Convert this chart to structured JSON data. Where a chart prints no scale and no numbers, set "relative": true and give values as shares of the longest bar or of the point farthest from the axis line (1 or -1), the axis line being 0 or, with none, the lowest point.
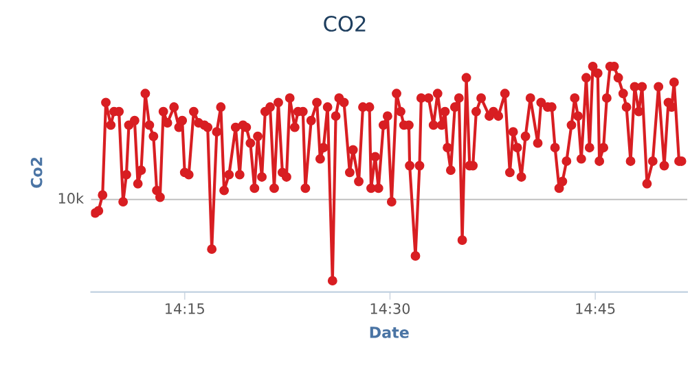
{
  "chart_data": {
    "type": "line",
    "title": "CO2",
    "xlabel": "Date",
    "ylabel": "Co2",
    "relative": true,
    "xlim": [
      14.136,
      14.862
    ],
    "xticks": [
      {
        "value": 14.25,
        "label": "14:15"
      },
      {
        "value": 14.5,
        "label": "14:30"
      },
      {
        "value": 14.75,
        "label": "14:45"
      }
    ],
    "grid": false,
    "marker": "circle",
    "line_style": "solid",
    "ref_lines": [
      {
        "axis": "y",
        "value": 0.41,
        "label": "10k",
        "color": "#c0c0c0"
      }
    ],
    "series": [
      {
        "color": "#d81e22",
        "x": [
          14.141,
          14.145,
          14.15,
          14.154,
          14.16,
          14.164,
          14.17,
          14.175,
          14.179,
          14.182,
          14.189,
          14.193,
          14.197,
          14.202,
          14.207,
          14.212,
          14.216,
          14.22,
          14.224,
          14.229,
          14.237,
          14.243,
          14.247,
          14.25,
          14.255,
          14.261,
          14.267,
          14.274,
          14.278,
          14.283,
          14.289,
          14.294,
          14.298,
          14.304,
          14.312,
          14.317,
          14.321,
          14.325,
          14.33,
          14.335,
          14.339,
          14.344,
          14.348,
          14.354,
          14.359,
          14.364,
          14.369,
          14.374,
          14.378,
          14.384,
          14.388,
          14.394,
          14.397,
          14.404,
          14.411,
          14.415,
          14.419,
          14.424,
          14.43,
          14.434,
          14.438,
          14.444,
          14.451,
          14.455,
          14.462,
          14.467,
          14.475,
          14.477,
          14.482,
          14.486,
          14.492,
          14.497,
          14.502,
          14.508,
          14.513,
          14.517,
          14.523,
          14.524,
          14.531,
          14.536,
          14.538,
          14.547,
          14.553,
          14.558,
          14.563,
          14.567,
          14.57,
          14.574,
          14.579,
          14.584,
          14.588,
          14.593,
          14.597,
          14.601,
          14.605,
          14.611,
          14.621,
          14.626,
          14.632,
          14.64,
          14.646,
          14.65,
          14.655,
          14.66,
          14.665,
          14.671,
          14.68,
          14.684,
          14.692,
          14.697,
          14.701,
          14.706,
          14.71,
          14.715,
          14.721,
          14.725,
          14.729,
          14.733,
          14.739,
          14.743,
          14.747,
          14.753,
          14.755,
          14.76,
          14.764,
          14.768,
          14.773,
          14.778,
          14.784,
          14.788,
          14.793,
          14.798,
          14.803,
          14.807,
          14.813,
          14.82,
          14.827,
          14.834,
          14.839,
          14.843,
          14.846,
          14.852,
          14.855
        ],
        "values": [
          0.35,
          0.36,
          0.43,
          0.84,
          0.74,
          0.8,
          0.8,
          0.4,
          0.52,
          0.74,
          0.76,
          0.48,
          0.54,
          0.88,
          0.74,
          0.69,
          0.45,
          0.42,
          0.8,
          0.75,
          0.82,
          0.73,
          0.76,
          0.53,
          0.52,
          0.8,
          0.75,
          0.74,
          0.73,
          0.19,
          0.71,
          0.82,
          0.45,
          0.52,
          0.73,
          0.52,
          0.74,
          0.73,
          0.66,
          0.46,
          0.69,
          0.51,
          0.8,
          0.82,
          0.46,
          0.84,
          0.53,
          0.51,
          0.86,
          0.73,
          0.8,
          0.8,
          0.46,
          0.76,
          0.84,
          0.59,
          0.64,
          0.82,
          0.05,
          0.78,
          0.86,
          0.84,
          0.53,
          0.63,
          0.49,
          0.82,
          0.82,
          0.46,
          0.6,
          0.46,
          0.74,
          0.78,
          0.4,
          0.88,
          0.8,
          0.74,
          0.74,
          0.56,
          0.16,
          0.56,
          0.86,
          0.86,
          0.74,
          0.88,
          0.74,
          0.8,
          0.64,
          0.54,
          0.82,
          0.86,
          0.23,
          0.95,
          0.56,
          0.56,
          0.8,
          0.86,
          0.78,
          0.8,
          0.78,
          0.88,
          0.53,
          0.71,
          0.64,
          0.51,
          0.69,
          0.86,
          0.66,
          0.84,
          0.82,
          0.82,
          0.64,
          0.46,
          0.49,
          0.58,
          0.74,
          0.86,
          0.78,
          0.59,
          0.95,
          0.64,
          1.0,
          0.97,
          0.58,
          0.64,
          0.86,
          1.0,
          1.0,
          0.95,
          0.88,
          0.82,
          0.58,
          0.91,
          0.8,
          0.91,
          0.48,
          0.58,
          0.91,
          0.56,
          0.84,
          0.82,
          0.93,
          0.58,
          0.58
        ]
      }
    ]
  }
}
